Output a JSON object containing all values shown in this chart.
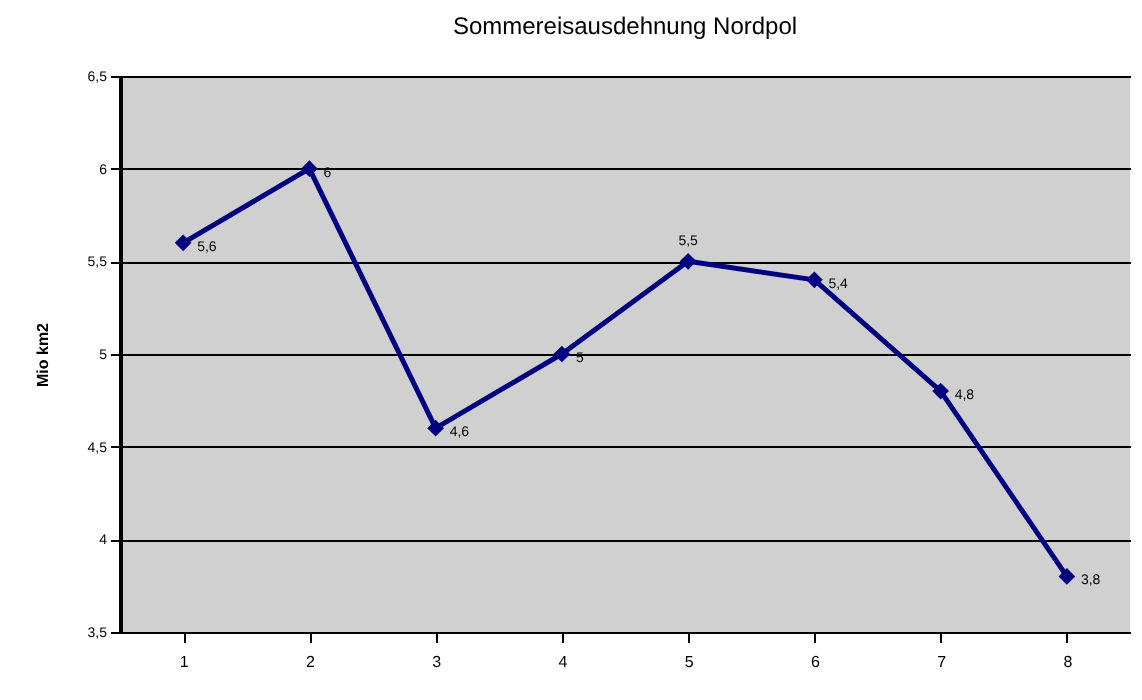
{
  "chart_data": {
    "type": "line",
    "title": "Sommereisausdehnung Nordpol",
    "ylabel": "Mio km2",
    "categories": [
      "1",
      "2",
      "3",
      "4",
      "5",
      "6",
      "7",
      "8"
    ],
    "series": [
      {
        "color": "#000080",
        "values": [
          5.6,
          6,
          4.6,
          5,
          5.5,
          5.4,
          4.8,
          3.8
        ],
        "value_labels": [
          "5,6",
          "6",
          "4,6",
          "5",
          "5,5",
          "5,4",
          "4,8",
          "3,8"
        ]
      }
    ],
    "ylim": [
      3.5,
      6.5
    ],
    "yticks": [
      {
        "value": 3.5,
        "label": "3,5"
      },
      4,
      {
        "value": 4.5,
        "label": "4,5"
      },
      5,
      {
        "value": 5.5,
        "label": "5,5"
      },
      6,
      {
        "value": 6.5,
        "label": "6,5"
      }
    ],
    "grid": "y",
    "marker": "diamond"
  }
}
